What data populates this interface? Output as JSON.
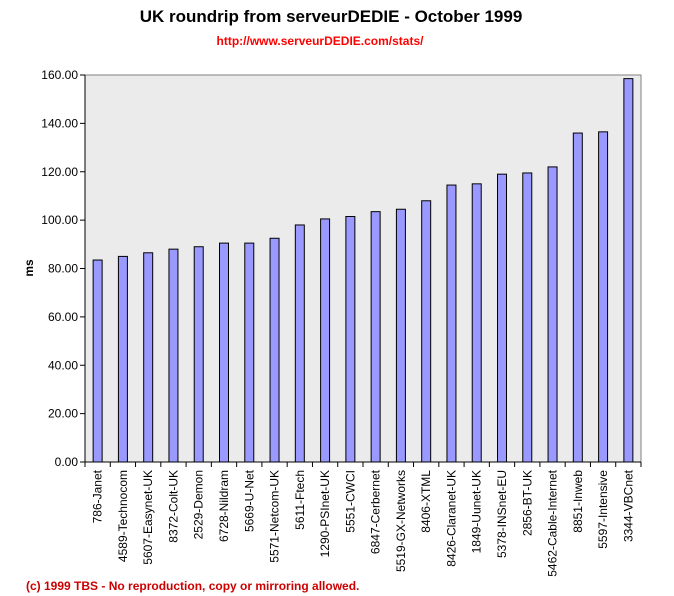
{
  "chart_data": {
    "type": "bar",
    "title": "UK roundrip from serveurDEDIE - October 1999",
    "subtitle": "http://www.serveurDEDIE.com/stats/",
    "xlabel": "",
    "ylabel": "ms",
    "ylim": [
      0,
      160
    ],
    "yticks": [
      "0.00",
      "20.00",
      "40.00",
      "60.00",
      "80.00",
      "100.00",
      "120.00",
      "140.00",
      "160.00"
    ],
    "grid": false,
    "legend": "none",
    "categories": [
      "786-Janet",
      "4589-Technocom",
      "5607-Easynet-UK",
      "8372-Colt-UK",
      "2529-Demon",
      "6728-Nildram",
      "5669-U-Net",
      "5571-Netcom-UK",
      "5611-Ftech",
      "1290-PSInet-UK",
      "5551-CWCI",
      "6847-Cerbernet",
      "5519-GX-Networks",
      "8406-XTML",
      "8426-Claranet-UK",
      "1849-Uunet-UK",
      "5378-INSnet-EU",
      "2856-BT-UK",
      "5462-Cable-Internet",
      "8851-Inweb",
      "5597-Intensive",
      "3344-VBCnet"
    ],
    "values": [
      83.5,
      85.0,
      86.5,
      88.0,
      89.0,
      90.5,
      90.5,
      92.5,
      98.0,
      100.5,
      101.5,
      103.5,
      104.5,
      108.0,
      114.5,
      115.0,
      119.0,
      119.5,
      122.0,
      136.0,
      136.5,
      158.5
    ],
    "colors": {
      "bar_fill": "#9999ff",
      "bar_stroke": "#000000",
      "plot_background": "#ebebeb",
      "title": "#000000",
      "subtitle": "#ff0000",
      "footer": "#cc0000"
    }
  },
  "footer": "(c) 1999 TBS - No reproduction, copy or mirroring allowed."
}
